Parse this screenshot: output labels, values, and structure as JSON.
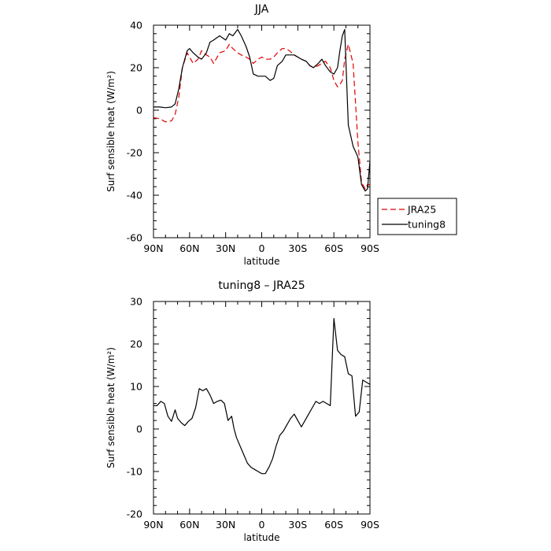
{
  "chart_data": [
    {
      "type": "line",
      "title": "JJA",
      "xlabel": "latitude",
      "ylabel": "Surf sensible heat (W/m²)",
      "xlim": [
        90,
        -90
      ],
      "ylim": [
        -60,
        40
      ],
      "x_ticks": [
        90,
        60,
        30,
        0,
        -30,
        -60,
        -90
      ],
      "x_tick_labels": [
        "90N",
        "60N",
        "30N",
        "0",
        "30S",
        "60S",
        "90S"
      ],
      "y_ticks": [
        -60,
        -40,
        -20,
        0,
        20,
        40
      ],
      "y_tick_labels": [
        "-60",
        "-40",
        "-20",
        "0",
        "20",
        "40"
      ],
      "grid": false,
      "legend_position": "right",
      "series": [
        {
          "name": "JRA25",
          "style": "dashed",
          "color": "#e00000",
          "x": [
            90,
            85,
            80,
            75,
            72,
            69,
            66,
            62,
            60,
            57,
            53,
            50,
            46,
            43,
            40,
            35,
            30,
            27,
            24,
            20,
            17,
            13,
            10,
            7,
            3,
            0,
            -3,
            -7,
            -10,
            -13,
            -17,
            -20,
            -23,
            -27,
            -30,
            -33,
            -37,
            -40,
            -43,
            -47,
            -50,
            -53,
            -57,
            -60,
            -63,
            -65,
            -67,
            -69,
            -72,
            -76,
            -80,
            -83,
            -86,
            -88,
            -90
          ],
          "y": [
            -3.5,
            -4,
            -5.5,
            -5,
            -2,
            6,
            20,
            27,
            25,
            22,
            24,
            28,
            26,
            25,
            22,
            27,
            28,
            31,
            29,
            27,
            26,
            25,
            24,
            22,
            24,
            25,
            24,
            24,
            25,
            27,
            29,
            29,
            28,
            26,
            25,
            24,
            23,
            21,
            20,
            21,
            22,
            23,
            20,
            14,
            11,
            12,
            14,
            24,
            31,
            22,
            -15,
            -34,
            -37,
            -35,
            -35
          ]
        },
        {
          "name": "tuning8",
          "style": "solid",
          "color": "#000000",
          "x": [
            90,
            85,
            80,
            75,
            72,
            69,
            66,
            62,
            60,
            57,
            53,
            50,
            46,
            43,
            40,
            35,
            30,
            27,
            24,
            20,
            17,
            13,
            10,
            7,
            3,
            0,
            -3,
            -7,
            -10,
            -13,
            -17,
            -20,
            -23,
            -27,
            -30,
            -33,
            -37,
            -40,
            -43,
            -47,
            -50,
            -53,
            -57,
            -60,
            -63,
            -65,
            -67,
            -69,
            -72,
            -76,
            -80,
            -83,
            -86,
            -88,
            -90
          ],
          "y": [
            1.5,
            1.5,
            1.2,
            1.5,
            3,
            10,
            20,
            28,
            29,
            27,
            25,
            24,
            27,
            32,
            33,
            35,
            33,
            36,
            35,
            38,
            35,
            30,
            25,
            17,
            16,
            16,
            16,
            14,
            15,
            21,
            23,
            26,
            26,
            26,
            25,
            24,
            23,
            21,
            20,
            22,
            24,
            21,
            18,
            17,
            20,
            28,
            35,
            38,
            -7,
            -17,
            -22,
            -35,
            -38,
            -37,
            -24
          ]
        }
      ]
    },
    {
      "type": "line",
      "title": "tuning8 – JRA25",
      "xlabel": "latitude",
      "ylabel": "Surf sensible heat (W/m²)",
      "xlim": [
        90,
        -90
      ],
      "ylim": [
        -20,
        30
      ],
      "x_ticks": [
        90,
        60,
        30,
        0,
        -30,
        -60,
        -90
      ],
      "x_tick_labels": [
        "90N",
        "60N",
        "30N",
        "0",
        "30S",
        "60S",
        "90S"
      ],
      "y_ticks": [
        -20,
        -10,
        0,
        10,
        20,
        30
      ],
      "y_tick_labels": [
        "-20",
        "-10",
        "0",
        "10",
        "20",
        "30"
      ],
      "grid": false,
      "series": [
        {
          "style": "solid",
          "color": "#000000",
          "x": [
            90,
            87,
            84,
            81,
            78,
            75,
            72,
            70,
            67,
            64,
            61,
            58,
            55,
            52,
            49,
            46,
            43,
            40,
            37,
            34,
            31,
            28,
            25,
            23,
            21,
            18,
            15,
            12,
            9,
            6,
            3,
            0,
            -3,
            -6,
            -9,
            -12,
            -15,
            -18,
            -21,
            -24,
            -27,
            -30,
            -33,
            -36,
            -39,
            -42,
            -45,
            -48,
            -51,
            -54,
            -57,
            -60,
            -63,
            -66,
            -69,
            -72,
            -75,
            -78,
            -81,
            -84,
            -87,
            -90
          ],
          "y": [
            5.5,
            5.5,
            6.5,
            6,
            3,
            1.8,
            4.5,
            2.5,
            1.5,
            0.8,
            1.8,
            2.5,
            5,
            9.5,
            9,
            9.5,
            8,
            6,
            6.5,
            6.8,
            6,
            2,
            3,
            0,
            -2,
            -4,
            -6,
            -8,
            -9,
            -9.5,
            -10,
            -10.5,
            -10.5,
            -9,
            -7,
            -4,
            -1.5,
            -0.5,
            1,
            2.5,
            3.5,
            2,
            0.5,
            2,
            3.5,
            5,
            6.5,
            6,
            6.5,
            6,
            5.5,
            26,
            18.5,
            17.5,
            17,
            13,
            12.5,
            3,
            4,
            11.5,
            11,
            10.5
          ]
        }
      ]
    }
  ]
}
